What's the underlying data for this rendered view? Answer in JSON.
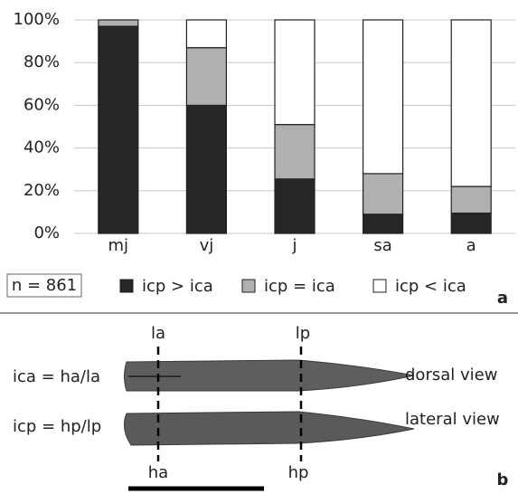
{
  "chart_data": {
    "type": "stacked-bar",
    "categories": [
      "mj",
      "vj",
      "j",
      "sa",
      "a"
    ],
    "series": [
      {
        "name": "icp > ica",
        "color": "#262626",
        "values": [
          97,
          60,
          25.5,
          9,
          9.5
        ]
      },
      {
        "name": "icp =  ica",
        "color": "#b0b0b0",
        "values": [
          3,
          27,
          25.5,
          19,
          12.5
        ]
      },
      {
        "name": "icp < ica",
        "color": "#ffffff",
        "values": [
          0,
          13,
          49,
          72,
          78
        ]
      }
    ],
    "ylim": [
      0,
      100
    ],
    "yticks": [
      {
        "value": 0,
        "label": "0%"
      },
      {
        "value": 20,
        "label": "20%"
      },
      {
        "value": 40,
        "label": "40%"
      },
      {
        "value": 60,
        "label": "60%"
      },
      {
        "value": 80,
        "label": "80%"
      },
      {
        "value": 100,
        "label": "100%"
      }
    ],
    "grid": true,
    "annotation": "n = 861",
    "panel_label": "a"
  },
  "diagram": {
    "top_labels": [
      "la",
      "lp"
    ],
    "bottom_labels": [
      "ha",
      "hp"
    ],
    "formulas": [
      "ica = ha/la",
      "icp = hp/lp"
    ],
    "views": [
      "dorsal view",
      "lateral view"
    ],
    "panel_label": "b"
  }
}
